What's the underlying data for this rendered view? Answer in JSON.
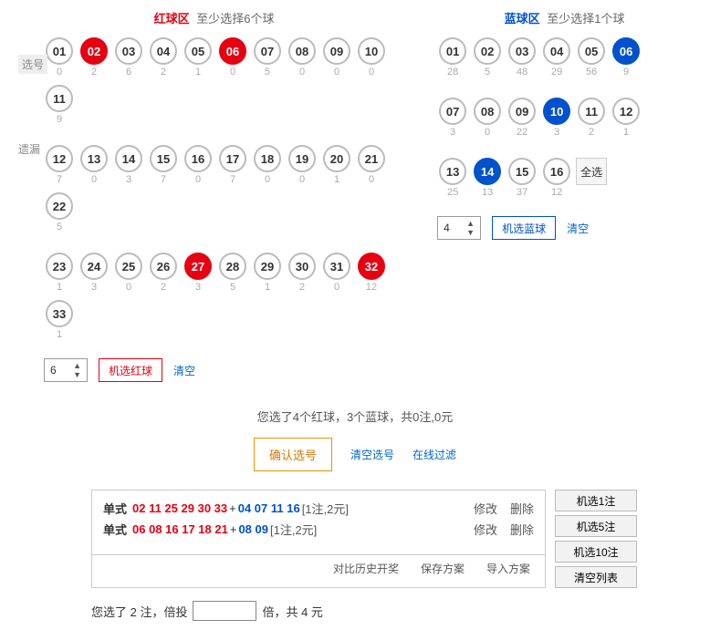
{
  "red_zone": {
    "title": "红球区",
    "subtitle": "至少选择6个球",
    "label_select": "选号",
    "label_miss": "遗漏",
    "balls": [
      {
        "n": "01",
        "m": "0",
        "s": false
      },
      {
        "n": "02",
        "m": "2",
        "s": true
      },
      {
        "n": "03",
        "m": "6",
        "s": false
      },
      {
        "n": "04",
        "m": "2",
        "s": false
      },
      {
        "n": "05",
        "m": "1",
        "s": false
      },
      {
        "n": "06",
        "m": "0",
        "s": true
      },
      {
        "n": "07",
        "m": "5",
        "s": false
      },
      {
        "n": "08",
        "m": "0",
        "s": false
      },
      {
        "n": "09",
        "m": "0",
        "s": false
      },
      {
        "n": "10",
        "m": "0",
        "s": false
      },
      {
        "n": "11",
        "m": "9",
        "s": false
      },
      {
        "n": "12",
        "m": "7",
        "s": false
      },
      {
        "n": "13",
        "m": "0",
        "s": false
      },
      {
        "n": "14",
        "m": "3",
        "s": false
      },
      {
        "n": "15",
        "m": "7",
        "s": false
      },
      {
        "n": "16",
        "m": "0",
        "s": false
      },
      {
        "n": "17",
        "m": "7",
        "s": false
      },
      {
        "n": "18",
        "m": "0",
        "s": false
      },
      {
        "n": "19",
        "m": "0",
        "s": false
      },
      {
        "n": "20",
        "m": "1",
        "s": false
      },
      {
        "n": "21",
        "m": "0",
        "s": false
      },
      {
        "n": "22",
        "m": "5",
        "s": false
      },
      {
        "n": "23",
        "m": "1",
        "s": false
      },
      {
        "n": "24",
        "m": "3",
        "s": false
      },
      {
        "n": "25",
        "m": "0",
        "s": false
      },
      {
        "n": "26",
        "m": "2",
        "s": false
      },
      {
        "n": "27",
        "m": "3",
        "s": true
      },
      {
        "n": "28",
        "m": "5",
        "s": false
      },
      {
        "n": "29",
        "m": "1",
        "s": false
      },
      {
        "n": "30",
        "m": "2",
        "s": false
      },
      {
        "n": "31",
        "m": "0",
        "s": false
      },
      {
        "n": "32",
        "m": "12",
        "s": true
      },
      {
        "n": "33",
        "m": "1",
        "s": false
      }
    ],
    "per_row": 11,
    "qty": "6",
    "btn_random": "机选红球",
    "btn_clear": "清空"
  },
  "blue_zone": {
    "title": "蓝球区",
    "subtitle": "至少选择1个球",
    "balls": [
      {
        "n": "01",
        "m": "28",
        "s": false
      },
      {
        "n": "02",
        "m": "5",
        "s": false
      },
      {
        "n": "03",
        "m": "48",
        "s": false
      },
      {
        "n": "04",
        "m": "29",
        "s": false
      },
      {
        "n": "05",
        "m": "56",
        "s": false
      },
      {
        "n": "06",
        "m": "9",
        "s": true
      },
      {
        "n": "07",
        "m": "3",
        "s": false
      },
      {
        "n": "08",
        "m": "0",
        "s": false
      },
      {
        "n": "09",
        "m": "22",
        "s": false
      },
      {
        "n": "10",
        "m": "3",
        "s": true
      },
      {
        "n": "11",
        "m": "2",
        "s": false
      },
      {
        "n": "12",
        "m": "1",
        "s": false
      },
      {
        "n": "13",
        "m": "25",
        "s": false
      },
      {
        "n": "14",
        "m": "13",
        "s": true
      },
      {
        "n": "15",
        "m": "37",
        "s": false
      },
      {
        "n": "16",
        "m": "12",
        "s": false
      }
    ],
    "per_row": 6,
    "select_all": "全选",
    "qty": "4",
    "btn_random": "机选蓝球",
    "btn_clear": "清空"
  },
  "summary": "您选了4个红球，3个蓝球，共0注,0元",
  "actions": {
    "confirm": "确认选号",
    "clear": "清空选号",
    "filter": "在线过滤"
  },
  "bets": {
    "lines": [
      {
        "type": "单式",
        "red": "02 11 25 29 30 33",
        "blue": "04 07 11 16",
        "meta": "[1注,2元]",
        "edit": "修改",
        "del": "删除"
      },
      {
        "type": "单式",
        "red": "06 08 16 17 18 21",
        "blue": "08 09",
        "meta": "[1注,2元]",
        "edit": "修改",
        "del": "删除"
      }
    ],
    "footer": {
      "history": "对比历史开奖",
      "save": "保存方案",
      "import": "导入方案"
    }
  },
  "quick": [
    "机选1注",
    "机选5注",
    "机选10注",
    "清空列表"
  ],
  "bottom": {
    "pre": "您选了 2 注，倍投",
    "suf": "倍，共 4 元"
  }
}
